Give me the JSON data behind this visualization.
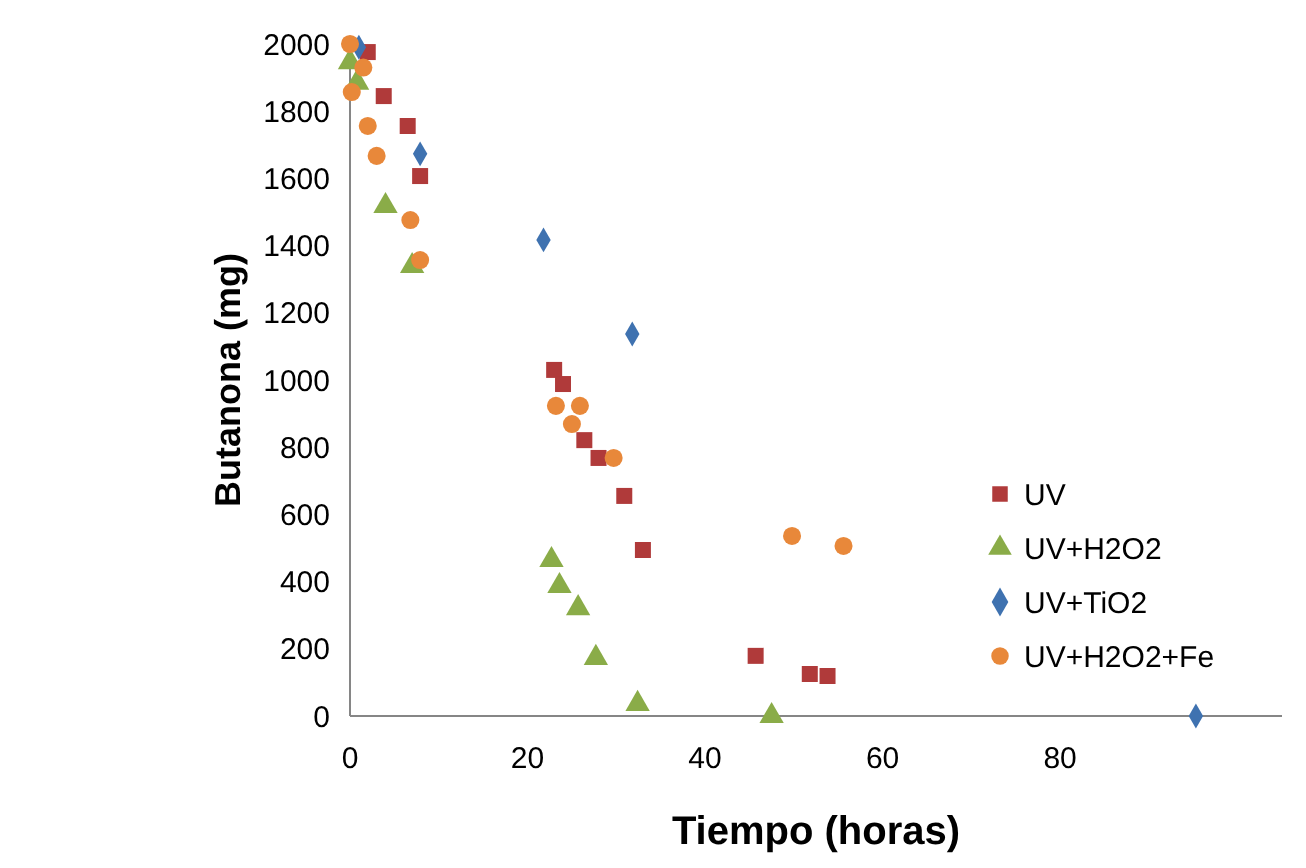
{
  "chart_data": {
    "type": "scatter",
    "xlabel": "Tiempo (horas)",
    "ylabel": "Butanona (mg)",
    "xlim": [
      0,
      105
    ],
    "xticks": [
      0,
      20,
      40,
      60,
      80
    ],
    "ylim": [
      0,
      2000
    ],
    "yticks": [
      0,
      200,
      400,
      600,
      800,
      1000,
      1200,
      1400,
      1600,
      1800,
      2000
    ],
    "grid": false,
    "legend": "right",
    "series": [
      {
        "name": "UV",
        "color": "#b03a3a",
        "marker": "square",
        "x": [
          2,
          3.8,
          6.5,
          7.9,
          23,
          24,
          26.4,
          28,
          30.9,
          33,
          45.7,
          51.8,
          53.8
        ],
        "values": [
          1976,
          1845,
          1756,
          1607,
          1030,
          988,
          821,
          768,
          655,
          494,
          179,
          125,
          119
        ]
      },
      {
        "name": "UV+H2O2",
        "color": "#8aac48",
        "marker": "triangle",
        "x": [
          0,
          0.8,
          4,
          7,
          22.7,
          23.6,
          25.7,
          27.7,
          32.4,
          47.5
        ],
        "values": [
          1946,
          1885,
          1518,
          1339,
          464,
          387,
          321,
          173,
          36,
          0
        ]
      },
      {
        "name": "UV+TiO2",
        "color": "#3f72b0",
        "marker": "diamond",
        "x": [
          1,
          7.9,
          21.8,
          31.8,
          95.3
        ],
        "values": [
          1990,
          1673,
          1417,
          1137,
          0
        ]
      },
      {
        "name": "UV+H2O2+Fe",
        "color": "#e8883a",
        "marker": "circle",
        "x": [
          0,
          1.5,
          0.2,
          2,
          3,
          6.8,
          7.9,
          23.2,
          25.9,
          25,
          29.7,
          49.8,
          55.6
        ],
        "values": [
          2000,
          1930,
          1857,
          1756,
          1667,
          1476,
          1357,
          923,
          923,
          869,
          768,
          536,
          506
        ]
      }
    ]
  }
}
